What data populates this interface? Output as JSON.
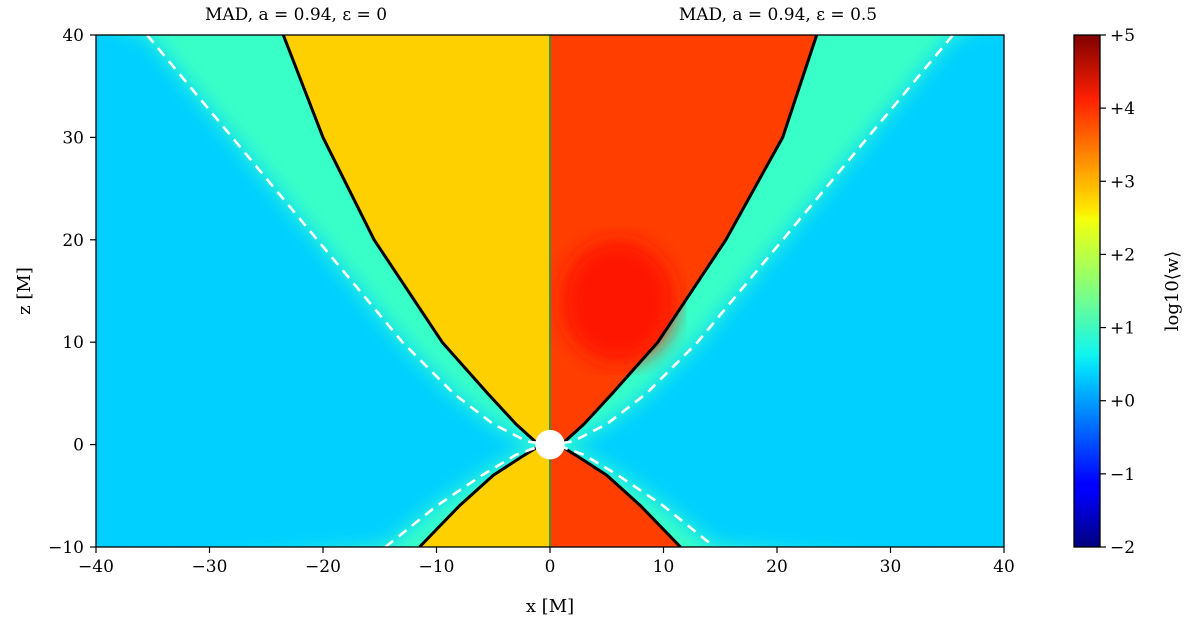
{
  "chart_data": {
    "type": "heatmap",
    "panels": [
      {
        "title": "MAD, a = 0.94, ε = 0",
        "xlim": [
          -40,
          0
        ]
      },
      {
        "title": "MAD, a = 0.94, ε = 0.5",
        "xlim": [
          0,
          40
        ]
      }
    ],
    "xlabel": "x [M]",
    "ylabel": "z [M]",
    "xlim": [
      -40,
      40
    ],
    "ylim": [
      -10,
      40
    ],
    "x_ticks": [
      -40,
      -30,
      -20,
      -10,
      0,
      10,
      20,
      30,
      40
    ],
    "x_tick_labels": [
      "−40",
      "−30",
      "−20",
      "−10",
      "0",
      "10",
      "20",
      "30",
      "40"
    ],
    "y_ticks": [
      -10,
      0,
      10,
      20,
      30,
      40
    ],
    "y_tick_labels": [
      "−10",
      "0",
      "10",
      "20",
      "30",
      "40"
    ],
    "colorbar": {
      "label": "log10⟨w⟩",
      "range": [
        -2,
        5
      ],
      "colormap": "jet",
      "ticks": [
        -2,
        -1,
        0,
        1,
        2,
        3,
        4,
        5
      ],
      "tick_labels": [
        "−2",
        "−1",
        "+0",
        "+1",
        "+2",
        "+3",
        "+4",
        "+5"
      ]
    },
    "field_levels": {
      "background": 0.3,
      "disk_region": 1.0,
      "left_jet": 2.7,
      "right_jet": 3.7,
      "right_jet_core": 4.0
    },
    "series": [
      {
        "style": "solid black",
        "points": [
          [
            -23.5,
            40
          ],
          [
            -20,
            30
          ],
          [
            -15.5,
            20
          ],
          [
            -9.5,
            10
          ],
          [
            -5.5,
            5
          ],
          [
            -3,
            2
          ],
          [
            -1.2,
            0.2
          ],
          [
            0,
            0
          ],
          [
            1.2,
            0.2
          ],
          [
            3,
            2
          ],
          [
            5.5,
            5
          ],
          [
            9.5,
            10
          ],
          [
            15.5,
            20
          ],
          [
            20.5,
            30
          ],
          [
            23.5,
            40
          ]
        ]
      },
      {
        "style": "solid black",
        "points": [
          [
            -11.5,
            -10
          ],
          [
            -8,
            -6
          ],
          [
            -5,
            -3
          ],
          [
            -2.5,
            -1.2
          ],
          [
            -1.2,
            -0.3
          ],
          [
            0,
            0
          ],
          [
            1.2,
            -0.3
          ],
          [
            2.5,
            -1.2
          ],
          [
            5,
            -3
          ],
          [
            8,
            -6
          ],
          [
            11.5,
            -10
          ]
        ]
      },
      {
        "style": "dashed white",
        "points": [
          [
            -35.5,
            40
          ],
          [
            -28,
            30
          ],
          [
            -20.5,
            20
          ],
          [
            -13,
            10
          ],
          [
            -8.5,
            5
          ],
          [
            -5,
            2
          ],
          [
            -2,
            0.3
          ],
          [
            0,
            0
          ],
          [
            2,
            0.3
          ],
          [
            5,
            2
          ],
          [
            8.5,
            5
          ],
          [
            13,
            10
          ],
          [
            20.5,
            20
          ],
          [
            28,
            30
          ],
          [
            35.5,
            40
          ]
        ]
      },
      {
        "style": "dashed white",
        "points": [
          [
            -14.5,
            -10
          ],
          [
            -10,
            -6
          ],
          [
            -6,
            -3
          ],
          [
            -3,
            -1
          ],
          [
            -1,
            -0.2
          ],
          [
            0,
            0
          ],
          [
            1,
            -0.2
          ],
          [
            3,
            -1
          ],
          [
            6,
            -3
          ],
          [
            10,
            -6
          ],
          [
            14.5,
            -10
          ]
        ]
      }
    ]
  },
  "colors": {
    "axis_line": "#000000",
    "divider_line": "#3e8e3e",
    "horizon": "#ffffff"
  }
}
